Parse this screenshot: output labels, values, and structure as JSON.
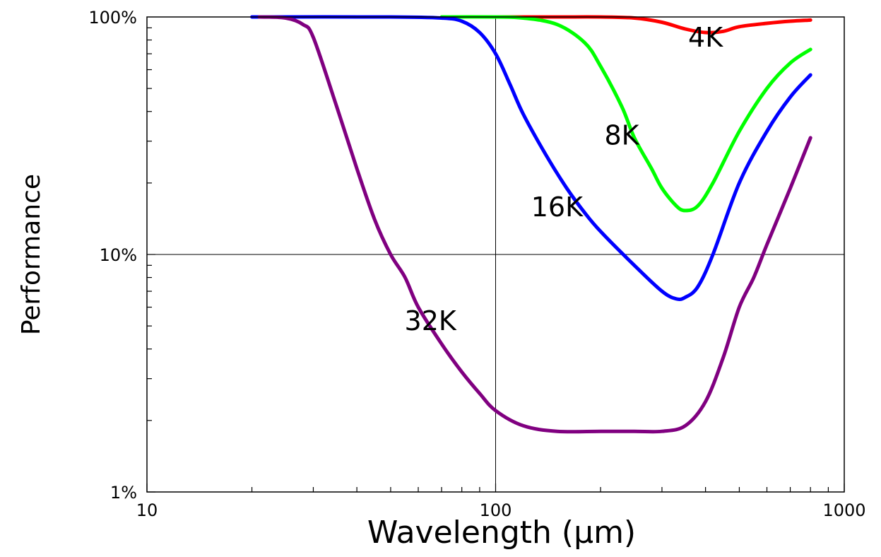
{
  "chart_data": {
    "type": "line",
    "title": "",
    "xlabel": "Wavelength (μm)",
    "ylabel": "Performance",
    "xscale": "log",
    "yscale": "log",
    "xlim": [
      10,
      1000
    ],
    "ylim": [
      0.01,
      1.0
    ],
    "grid": "major gridlines at 100 (x) and 10% (y)",
    "x_ticks": [
      {
        "value": 10,
        "label": "10"
      },
      {
        "value": 100,
        "label": "100"
      },
      {
        "value": 1000,
        "label": "1000"
      }
    ],
    "y_ticks": [
      {
        "value": 0.01,
        "label": "1%"
      },
      {
        "value": 0.1,
        "label": "10%"
      },
      {
        "value": 1.0,
        "label": "100%"
      }
    ],
    "series": [
      {
        "name": "4K",
        "color": "#ff0000",
        "label_at": [
          400,
          0.75
        ],
        "points": [
          [
            100,
            1.0
          ],
          [
            150,
            1.0
          ],
          [
            200,
            1.0
          ],
          [
            250,
            0.99
          ],
          [
            300,
            0.95
          ],
          [
            350,
            0.89
          ],
          [
            400,
            0.86
          ],
          [
            450,
            0.87
          ],
          [
            500,
            0.91
          ],
          [
            600,
            0.94
          ],
          [
            700,
            0.96
          ],
          [
            800,
            0.97
          ]
        ]
      },
      {
        "name": "8K",
        "color": "#00ff00",
        "label_at": [
          230,
          0.29
        ],
        "points": [
          [
            70,
            1.0
          ],
          [
            100,
            1.0
          ],
          [
            120,
            0.99
          ],
          [
            150,
            0.93
          ],
          [
            180,
            0.78
          ],
          [
            200,
            0.62
          ],
          [
            230,
            0.42
          ],
          [
            250,
            0.31
          ],
          [
            280,
            0.23
          ],
          [
            300,
            0.19
          ],
          [
            330,
            0.16
          ],
          [
            350,
            0.153
          ],
          [
            380,
            0.16
          ],
          [
            420,
            0.2
          ],
          [
            500,
            0.33
          ],
          [
            600,
            0.5
          ],
          [
            700,
            0.64
          ],
          [
            800,
            0.73
          ]
        ]
      },
      {
        "name": "16K",
        "color": "#0000ff",
        "label_at": [
          150,
          0.145
        ],
        "points": [
          [
            20,
            1.0
          ],
          [
            50,
            1.0
          ],
          [
            70,
            0.99
          ],
          [
            80,
            0.96
          ],
          [
            90,
            0.86
          ],
          [
            100,
            0.7
          ],
          [
            110,
            0.52
          ],
          [
            120,
            0.39
          ],
          [
            140,
            0.26
          ],
          [
            160,
            0.19
          ],
          [
            180,
            0.15
          ],
          [
            200,
            0.125
          ],
          [
            250,
            0.09
          ],
          [
            300,
            0.07
          ],
          [
            330,
            0.065
          ],
          [
            350,
            0.066
          ],
          [
            380,
            0.073
          ],
          [
            420,
            0.1
          ],
          [
            500,
            0.2
          ],
          [
            600,
            0.33
          ],
          [
            700,
            0.46
          ],
          [
            800,
            0.57
          ]
        ]
      },
      {
        "name": "32K",
        "color": "#800080",
        "label_at": [
          65,
          0.048
        ],
        "points": [
          [
            21,
            1.0
          ],
          [
            25,
            0.99
          ],
          [
            28,
            0.93
          ],
          [
            30,
            0.82
          ],
          [
            35,
            0.42
          ],
          [
            40,
            0.23
          ],
          [
            45,
            0.14
          ],
          [
            50,
            0.1
          ],
          [
            55,
            0.08
          ],
          [
            60,
            0.06
          ],
          [
            70,
            0.042
          ],
          [
            80,
            0.032
          ],
          [
            90,
            0.026
          ],
          [
            100,
            0.022
          ],
          [
            120,
            0.019
          ],
          [
            150,
            0.018
          ],
          [
            200,
            0.018
          ],
          [
            250,
            0.018
          ],
          [
            300,
            0.018
          ],
          [
            350,
            0.019
          ],
          [
            400,
            0.024
          ],
          [
            450,
            0.037
          ],
          [
            500,
            0.06
          ],
          [
            550,
            0.08
          ],
          [
            600,
            0.11
          ],
          [
            700,
            0.19
          ],
          [
            800,
            0.31
          ]
        ]
      }
    ]
  }
}
